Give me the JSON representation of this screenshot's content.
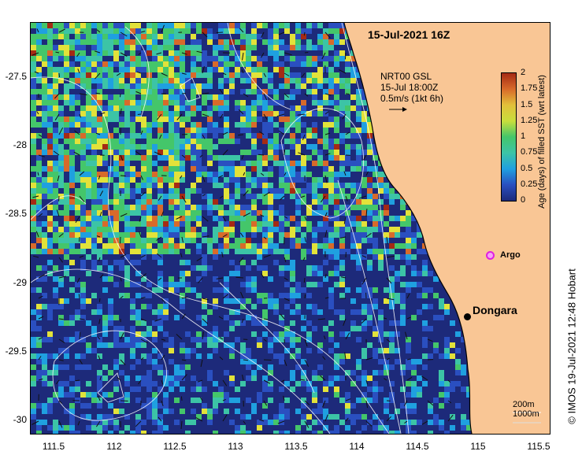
{
  "map": {
    "title": "15-Jul-2021 16Z",
    "current_source": "NRT00 GSL",
    "current_time": "15-Jul 18:00Z",
    "current_scale": "0.5m/s (1kt 6h)",
    "colorbar_title": "Age (days) of filled SST (wrt latest)",
    "colorbar_ticks": [
      "2",
      "1.75",
      "1.5",
      "1.25",
      "1",
      "0.75",
      "0.5",
      "0.25",
      "0"
    ],
    "colorbar_range": [
      0,
      2
    ],
    "y_ticks": [
      "-27.5",
      "-28",
      "-28.5",
      "-29",
      "-29.5",
      "-30"
    ],
    "x_ticks": [
      "111.5",
      "112",
      "112.5",
      "113",
      "113.5",
      "114",
      "114.5",
      "115",
      "115.5"
    ],
    "places": {
      "dongara": "Dongara",
      "argo": "Argo"
    },
    "isobath_200": "200m",
    "isobath_1000": "1000m",
    "credit": "© IMOS 19-Jul-2021 12:48 Hobart",
    "colors": {
      "land": "#f9c695",
      "old": "#1d2a7a",
      "blue": "#2a4fc0",
      "cyan": "#1fa0e0",
      "teal": "#3cc4a6",
      "green": "#44c66a",
      "yellow": "#e2e23a",
      "orange": "#d86a2a",
      "red": "#a52a14",
      "argo": "#e020e0"
    }
  }
}
